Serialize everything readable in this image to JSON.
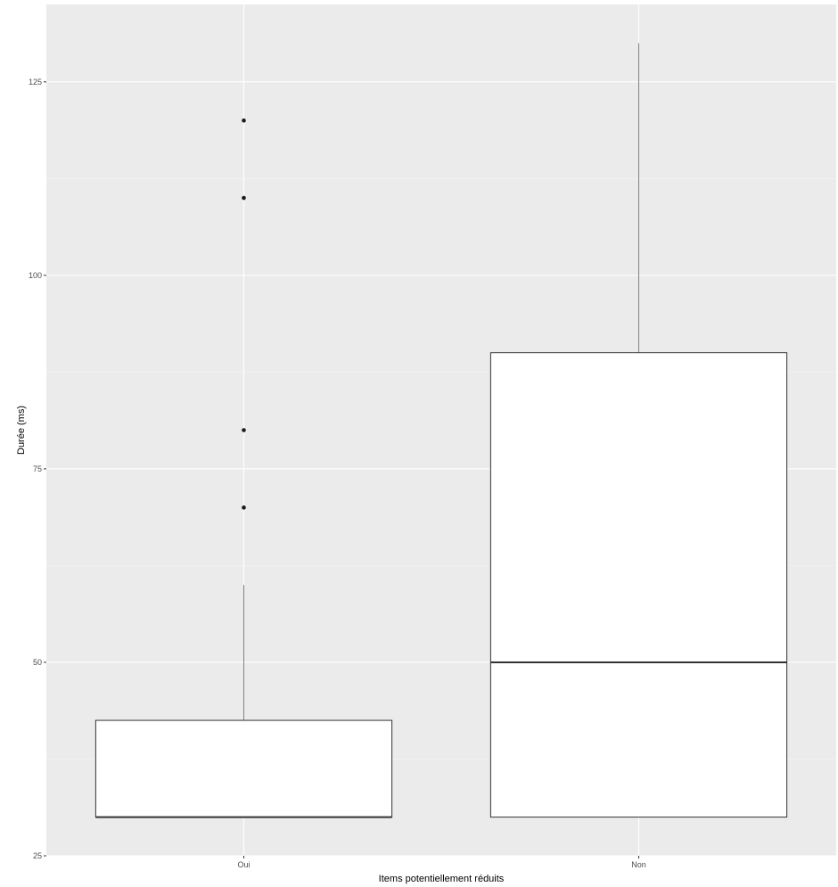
{
  "chart_data": {
    "type": "boxplot",
    "title": "",
    "xlabel": "Items potentiellement réduits",
    "ylabel": "Durée (ms)",
    "categories": [
      "Oui",
      "Non"
    ],
    "ylim": [
      25,
      135
    ],
    "yticks": [
      25,
      50,
      75,
      100,
      125
    ],
    "grid": true,
    "legend": "none",
    "boxes": [
      {
        "category": "Oui",
        "q1": 30,
        "median": 30,
        "q3": 42.5,
        "whisker_low": 30,
        "whisker_high": 60,
        "outliers": [
          70,
          80,
          110,
          120
        ]
      },
      {
        "category": "Non",
        "q1": 30,
        "median": 50,
        "q3": 90,
        "whisker_low": 30,
        "whisker_high": 130,
        "outliers": []
      }
    ]
  },
  "colors": {
    "panel": "#ebebeb",
    "grid_major": "#ffffff",
    "grid_minor": "#f5f5f5",
    "box_fill": "#ffffff",
    "box_line": "#333333",
    "whisker": "#808080",
    "outlier": "#1a1a1a"
  }
}
